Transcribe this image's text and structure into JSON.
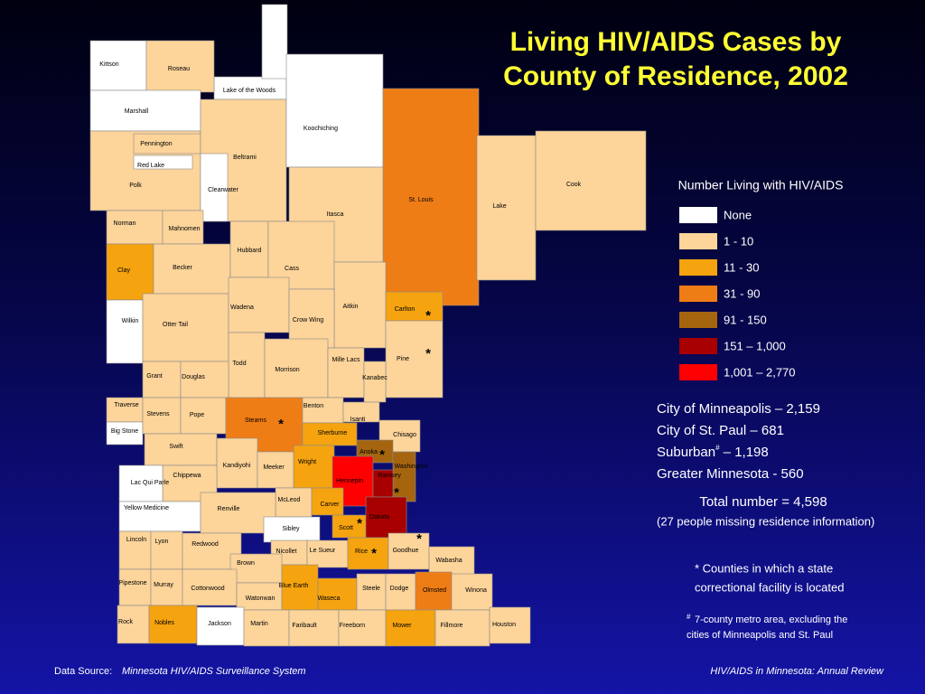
{
  "title_lines": [
    "Living HIV/AIDS Cases by",
    "County of Residence, 2002"
  ],
  "legend": {
    "title": "Number Living with HIV/AIDS",
    "items": [
      {
        "label": "None",
        "color": "#ffffff"
      },
      {
        "label": "1 - 10",
        "color": "#fdd49a"
      },
      {
        "label": "11 - 30",
        "color": "#f5a30f"
      },
      {
        "label": "31 - 90",
        "color": "#ef7d16"
      },
      {
        "label": "91 - 150",
        "color": "#a5650f"
      },
      {
        "label": "151 – 1,000",
        "color": "#a80000"
      },
      {
        "label": "1,001 – 2,770",
        "color": "#ff0000"
      }
    ]
  },
  "correctional_marker": "*",
  "counties": [
    {
      "name": "Lake of the Woods",
      "category": 0
    },
    {
      "name": "Kittson",
      "category": 0
    },
    {
      "name": "Roseau",
      "category": 1
    },
    {
      "name": "Marshall",
      "category": 0
    },
    {
      "name": "Polk",
      "category": 1
    },
    {
      "name": "Pennington",
      "category": 1
    },
    {
      "name": "Red Lake",
      "category": 0
    },
    {
      "name": "Beltrami",
      "category": 1
    },
    {
      "name": "Clearwater",
      "category": 0
    },
    {
      "name": "Koochiching",
      "category": 0
    },
    {
      "name": "St. Louis",
      "category": 3
    },
    {
      "name": "Lake",
      "category": 1
    },
    {
      "name": "Cook",
      "category": 1
    },
    {
      "name": "Itasca",
      "category": 1
    },
    {
      "name": "Norman",
      "category": 1
    },
    {
      "name": "Mahnomen",
      "category": 1
    },
    {
      "name": "Clay",
      "category": 2
    },
    {
      "name": "Becker",
      "category": 1
    },
    {
      "name": "Hubbard",
      "category": 1
    },
    {
      "name": "Cass",
      "category": 1
    },
    {
      "name": "Aitkin",
      "category": 1
    },
    {
      "name": "Carlton",
      "category": 2,
      "correctional": true
    },
    {
      "name": "Pine",
      "category": 1,
      "correctional": true
    },
    {
      "name": "Wilkin",
      "category": 0
    },
    {
      "name": "Otter Tail",
      "category": 1
    },
    {
      "name": "Wadena",
      "category": 1
    },
    {
      "name": "Crow Wing",
      "category": 1
    },
    {
      "name": "Todd",
      "category": 1
    },
    {
      "name": "Morrison",
      "category": 1
    },
    {
      "name": "Mille Lacs",
      "category": 1
    },
    {
      "name": "Kanabec",
      "category": 1
    },
    {
      "name": "Grant",
      "category": 1
    },
    {
      "name": "Douglas",
      "category": 1
    },
    {
      "name": "Traverse",
      "category": 1
    },
    {
      "name": "Big Stone",
      "category": 0
    },
    {
      "name": "Stevens",
      "category": 1
    },
    {
      "name": "Pope",
      "category": 1
    },
    {
      "name": "Stearns",
      "category": 3,
      "correctional": true
    },
    {
      "name": "Benton",
      "category": 1
    },
    {
      "name": "Isanti",
      "category": 1
    },
    {
      "name": "Sherburne",
      "category": 2
    },
    {
      "name": "Chisago",
      "category": 1
    },
    {
      "name": "Anoka",
      "category": 4,
      "correctional": true
    },
    {
      "name": "Washington",
      "category": 4
    },
    {
      "name": "Swift",
      "category": 1
    },
    {
      "name": "Kandiyohi",
      "category": 1
    },
    {
      "name": "Meeker",
      "category": 1
    },
    {
      "name": "Wright",
      "category": 2
    },
    {
      "name": "Hennepin",
      "category": 6
    },
    {
      "name": "Ramsey",
      "category": 5
    },
    {
      "name": "Chippewa",
      "category": 1
    },
    {
      "name": "Lac Qui Parle",
      "category": 0
    },
    {
      "name": "McLeod",
      "category": 1
    },
    {
      "name": "Carver",
      "category": 2
    },
    {
      "name": "Scott",
      "category": 2,
      "correctional": true
    },
    {
      "name": "Dakota",
      "category": 5,
      "correctional": true
    },
    {
      "name": "Yellow Medicine",
      "category": 0
    },
    {
      "name": "Renville",
      "category": 1
    },
    {
      "name": "Sibley",
      "category": 0
    },
    {
      "name": "Lincoln",
      "category": 1
    },
    {
      "name": "Lyon",
      "category": 1
    },
    {
      "name": "Redwood",
      "category": 1
    },
    {
      "name": "Nicollet",
      "category": 1
    },
    {
      "name": "Le Sueur",
      "category": 1
    },
    {
      "name": "Rice",
      "category": 2,
      "correctional": true
    },
    {
      "name": "Goodhue",
      "category": 1,
      "correctional": true
    },
    {
      "name": "Wabasha",
      "category": 1
    },
    {
      "name": "Brown",
      "category": 1
    },
    {
      "name": "Pipestone",
      "category": 1
    },
    {
      "name": "Murray",
      "category": 1
    },
    {
      "name": "Cottonwood",
      "category": 1
    },
    {
      "name": "Watonwan",
      "category": 1
    },
    {
      "name": "Blue Earth",
      "category": 2
    },
    {
      "name": "Waseca",
      "category": 2
    },
    {
      "name": "Steele",
      "category": 1
    },
    {
      "name": "Dodge",
      "category": 1
    },
    {
      "name": "Olmsted",
      "category": 3
    },
    {
      "name": "Winona",
      "category": 1
    },
    {
      "name": "Rock",
      "category": 1
    },
    {
      "name": "Nobles",
      "category": 2
    },
    {
      "name": "Jackson",
      "category": 0
    },
    {
      "name": "Martin",
      "category": 1
    },
    {
      "name": "Faribault",
      "category": 1
    },
    {
      "name": "Freeborn",
      "category": 1
    },
    {
      "name": "Mower",
      "category": 2
    },
    {
      "name": "Fillmore",
      "category": 1
    },
    {
      "name": "Houston",
      "category": 1
    }
  ],
  "stats": {
    "minneapolis": "City of Minneapolis – 2,159",
    "st_paul": "City of St. Paul – 681",
    "suburban": "Suburban",
    "suburban_mark": "#",
    "suburban_value": " – 1,198",
    "greater": "Greater Minnesota - 560",
    "total": "Total number = 4,598",
    "missing": "(27 people missing residence information)"
  },
  "notes": {
    "correctional_1": "* Counties in which a state",
    "correctional_2": "correctional facility is located",
    "metro_mark": "#",
    "metro_1": "7-county metro area, excluding the",
    "metro_2": "cities of Minneapolis and St. Paul"
  },
  "footer": {
    "source_label": "Data Source:",
    "source": "Minnesota HIV/AIDS Surveillance System",
    "publication": "HIV/AIDS in Minnesota: Annual Review"
  }
}
